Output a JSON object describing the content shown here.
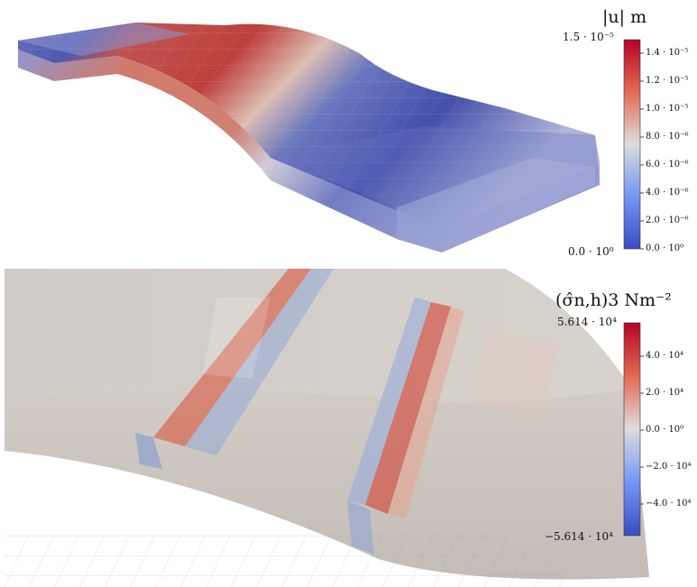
{
  "colors": {
    "cool": "#3b4cc0",
    "neutral": "#dddddd",
    "warm": "#b40426",
    "panel_bg": "#ffffff"
  },
  "top": {
    "title": "|u| m",
    "range_max": "1.5 · 10⁻⁵",
    "range_min": "0.0 · 10⁰",
    "ticks": [
      "1.4 · 10⁻⁵",
      "1.2 · 10⁻⁵",
      "1.0 · 10⁻⁵",
      "8.0 · 10⁻⁶",
      "6.0 · 10⁻⁶",
      "4.0 · 10⁻⁶",
      "2.0 · 10⁻⁶",
      "0.0 · 10⁰"
    ]
  },
  "bottom": {
    "title": "(σ̂n,h)3 Nm⁻²",
    "range_max": "5.614 · 10⁴",
    "range_min": "−5.614 · 10⁴",
    "ticks": [
      "4.0 · 10⁴",
      "2.0 · 10⁴",
      "0.0 · 10⁰",
      "−2.0 · 10⁴",
      "−4.0 · 10⁴"
    ]
  }
}
